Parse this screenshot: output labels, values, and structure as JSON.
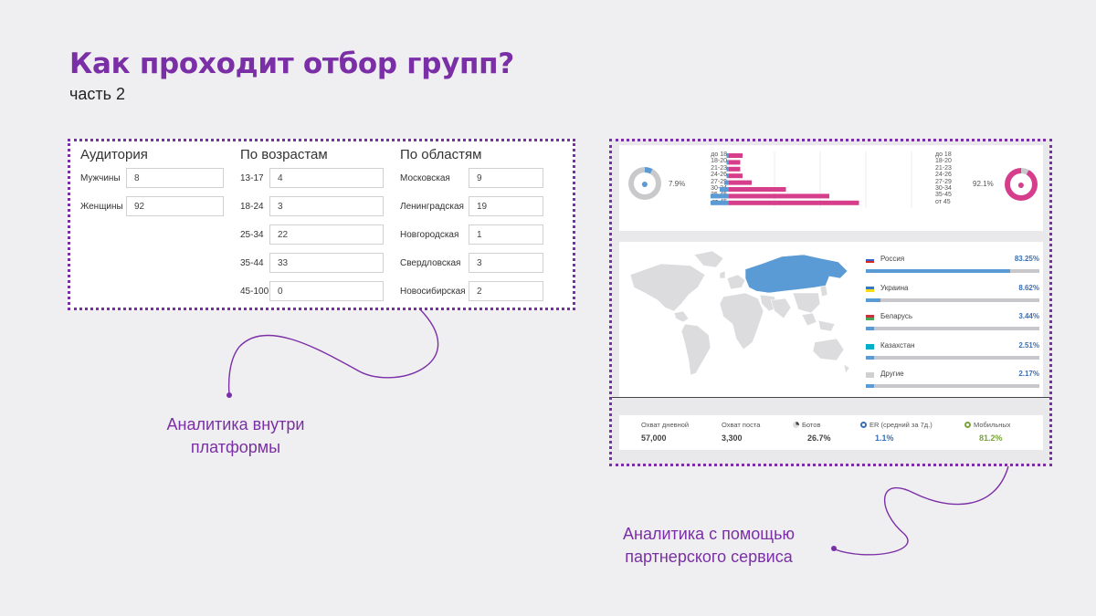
{
  "title": "Как проходит отбор групп?",
  "subtitle": "часть 2",
  "platform": {
    "audience": {
      "header": "Аудитория",
      "rows": [
        {
          "label": "Мужчины",
          "value": "8"
        },
        {
          "label": "Женщины",
          "value": "92"
        }
      ]
    },
    "ages": {
      "header": "По возрастам",
      "rows": [
        {
          "label": "13-17",
          "value": "4"
        },
        {
          "label": "18-24",
          "value": "3"
        },
        {
          "label": "25-34",
          "value": "22"
        },
        {
          "label": "35-44",
          "value": "33"
        },
        {
          "label": "45-100",
          "value": "0"
        }
      ]
    },
    "regions": {
      "header": "По областям",
      "rows": [
        {
          "label": "Московская",
          "value": "9"
        },
        {
          "label": "Ленинградская",
          "value": "19"
        },
        {
          "label": "Новгородская",
          "value": "1"
        },
        {
          "label": "Свердловская",
          "value": "3"
        },
        {
          "label": "Новосибирская",
          "value": "2"
        }
      ]
    }
  },
  "partner": {
    "men_pct": "7.9%",
    "women_pct": "92.1%",
    "age_groups": [
      "до 18",
      "18-20",
      "21-23",
      "24-26",
      "27-29",
      "30-34",
      "35-45",
      "от 45"
    ],
    "age_men": [
      0.5,
      0.5,
      0.5,
      0.5,
      1,
      2,
      4,
      4
    ],
    "age_women": [
      6,
      5,
      5,
      6,
      10,
      25,
      44,
      57
    ],
    "colors": {
      "men": "#5b9bd5",
      "women": "#d63d8a",
      "accent": "#7b2fa6"
    },
    "countries": [
      {
        "name": "Россия",
        "pct": "83.25%",
        "share": 0.8325,
        "flag": [
          "#ffffff",
          "#3a5fcd",
          "#d52b1e"
        ]
      },
      {
        "name": "Украина",
        "pct": "8.62%",
        "share": 0.0862,
        "flag": [
          "#3a75c4",
          "#f9dd16"
        ]
      },
      {
        "name": "Беларусь",
        "pct": "3.44%",
        "share": 0.0344,
        "flag": [
          "#c8313e",
          "#4aa657"
        ]
      },
      {
        "name": "Казахстан",
        "pct": "2.51%",
        "share": 0.0251,
        "flag": [
          "#00afca",
          "#00afca"
        ]
      },
      {
        "name": "Другие",
        "pct": "2.17%",
        "share": 0.0217,
        "flag": [
          "#d0d0d0",
          "#d0d0d0"
        ]
      }
    ],
    "stats": [
      {
        "label": "Охват дневной",
        "value": "57,000",
        "icon": "",
        "color": "#444444"
      },
      {
        "label": "Охват поста",
        "value": "3,300",
        "icon": "",
        "color": "#444444"
      },
      {
        "label": "Ботов",
        "value": "26.7%",
        "icon": "pie-icon",
        "color": "#444444"
      },
      {
        "label": "ER (средний за 7д.)",
        "value": "1.1%",
        "icon": "ring-icon",
        "color": "#3a6fb5"
      },
      {
        "label": "Мобильных",
        "value": "81.2%",
        "icon": "ring-icon",
        "color": "#7aa43a"
      }
    ]
  },
  "captions": {
    "platform": "Аналитика внутри платформы",
    "partner": "Аналитика с помощью партнерского сервиса"
  }
}
